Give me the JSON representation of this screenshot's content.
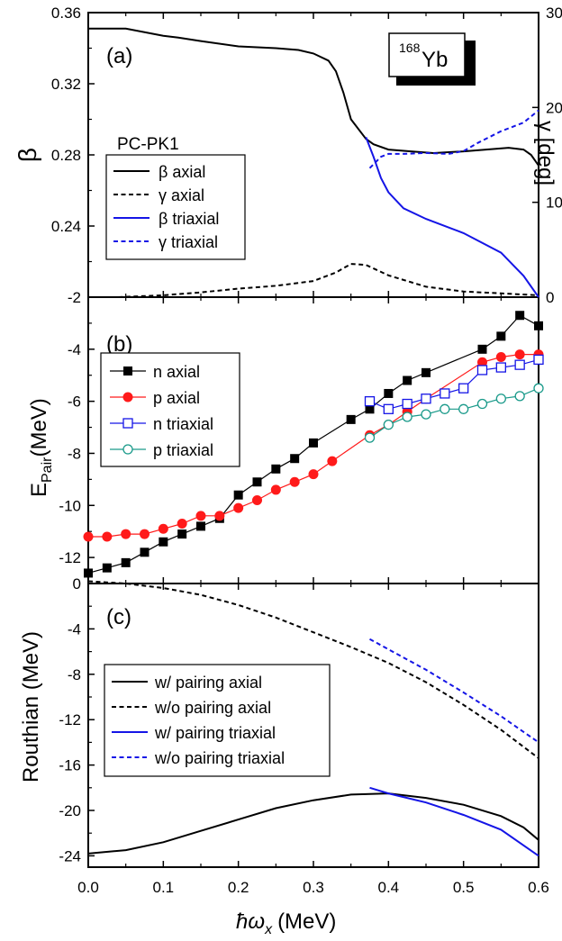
{
  "colors": {
    "axial": "#000000",
    "triaxial": "#1515e6",
    "p_axial": "#ff1a1a",
    "p_triaxial": "#1a9a8a"
  },
  "shared_x": {
    "label_main": "ω",
    "label_sub": "x",
    "label_unit": "(MeV)",
    "ticks": [
      "0.0",
      "0.1",
      "0.2",
      "0.3",
      "0.4",
      "0.5",
      "0.6"
    ],
    "xlim": [
      0,
      0.6
    ]
  },
  "chart_data": [
    {
      "type": "line",
      "panel_label": "(a)",
      "nucleus": {
        "mass": "168",
        "symbol": "Yb"
      },
      "legend_title": "PC-PK1",
      "legend_placement": "left",
      "ylabel_left": "β",
      "ylabel_right": "γ [deg]",
      "ylim_left": [
        0.2,
        0.36
      ],
      "ylim_right": [
        0,
        30
      ],
      "left_ticks": [
        "0.36",
        "0.32",
        "0.28",
        "0.24"
      ],
      "right_ticks": [
        "30",
        "20",
        "10",
        "0"
      ],
      "series": [
        {
          "name": "β axial",
          "axis": "left",
          "color": "#000000",
          "dash": "solid",
          "x": [
            0,
            0.05,
            0.1,
            0.12,
            0.15,
            0.2,
            0.25,
            0.28,
            0.3,
            0.32,
            0.33,
            0.34,
            0.35,
            0.37,
            0.38,
            0.4,
            0.43,
            0.46,
            0.5,
            0.53,
            0.56,
            0.58,
            0.59,
            0.6
          ],
          "y": [
            0.351,
            0.351,
            0.347,
            0.346,
            0.344,
            0.341,
            0.34,
            0.339,
            0.337,
            0.333,
            0.327,
            0.315,
            0.3,
            0.289,
            0.286,
            0.283,
            0.282,
            0.281,
            0.282,
            0.283,
            0.284,
            0.283,
            0.28,
            0.274
          ]
        },
        {
          "name": "γ axial",
          "axis": "right",
          "color": "#000000",
          "dash": "dashed",
          "x": [
            0.04,
            0.1,
            0.15,
            0.2,
            0.25,
            0.3,
            0.33,
            0.35,
            0.37,
            0.4,
            0.45,
            0.5,
            0.55,
            0.6
          ],
          "y": [
            0,
            0.2,
            0.5,
            0.9,
            1.2,
            1.7,
            2.6,
            3.5,
            3.4,
            2.3,
            1.1,
            0.6,
            0.4,
            0.2
          ]
        },
        {
          "name": "β triaxial",
          "axis": "left",
          "color": "#1515e6",
          "dash": "solid",
          "x": [
            0.37,
            0.38,
            0.39,
            0.4,
            0.42,
            0.45,
            0.5,
            0.55,
            0.58,
            0.6
          ],
          "y": [
            0.29,
            0.279,
            0.267,
            0.259,
            0.25,
            0.244,
            0.236,
            0.225,
            0.212,
            0.2
          ]
        },
        {
          "name": "γ triaxial",
          "axis": "right",
          "color": "#1515e6",
          "dash": "dashed",
          "x": [
            0.375,
            0.39,
            0.4,
            0.42,
            0.45,
            0.48,
            0.5,
            0.52,
            0.55,
            0.58,
            0.6
          ],
          "y": [
            13.6,
            14.8,
            15.1,
            15.1,
            15.2,
            15.1,
            15.4,
            16.3,
            17.5,
            18.4,
            19.7
          ]
        }
      ]
    },
    {
      "type": "line",
      "panel_label": "(b)",
      "ylabel": "E",
      "ylabel_sub": "Pair",
      "ylabel_unit": "(MeV)",
      "ylim": [
        -13,
        -2
      ],
      "left_ticks": [
        "-2",
        "-4",
        "-6",
        "-8",
        "-10",
        "-12"
      ],
      "legend_placement": "left",
      "series": [
        {
          "name": "n axial",
          "color": "#000000",
          "marker": "filled-square",
          "x": [
            0,
            0.025,
            0.05,
            0.075,
            0.1,
            0.125,
            0.15,
            0.175,
            0.2,
            0.225,
            0.25,
            0.275,
            0.3,
            0.35,
            0.375,
            0.4,
            0.425,
            0.45,
            0.525,
            0.55,
            0.575,
            0.6
          ],
          "y": [
            -12.6,
            -12.4,
            -12.2,
            -11.8,
            -11.4,
            -11.1,
            -10.8,
            -10.5,
            -9.6,
            -9.1,
            -8.6,
            -8.2,
            -7.6,
            -6.7,
            -6.3,
            -5.7,
            -5.2,
            -4.9,
            -4.0,
            -3.5,
            -2.7,
            -3.1
          ]
        },
        {
          "name": "p axial",
          "color": "#ff1a1a",
          "marker": "filled-circle",
          "x": [
            0,
            0.025,
            0.05,
            0.075,
            0.1,
            0.125,
            0.15,
            0.175,
            0.2,
            0.225,
            0.25,
            0.275,
            0.3,
            0.325,
            0.375,
            0.4,
            0.425,
            0.45,
            0.525,
            0.55,
            0.575,
            0.6
          ],
          "y": [
            -11.2,
            -11.2,
            -11.1,
            -11.1,
            -10.9,
            -10.7,
            -10.4,
            -10.4,
            -10.1,
            -9.8,
            -9.4,
            -9.1,
            -8.8,
            -8.3,
            -7.3,
            -6.9,
            -6.4,
            -5.9,
            -4.5,
            -4.3,
            -4.2,
            -4.2
          ]
        },
        {
          "name": "n triaxial",
          "color": "#1515e6",
          "marker": "open-square",
          "x": [
            0.375,
            0.4,
            0.425,
            0.45,
            0.475,
            0.5,
            0.525,
            0.55,
            0.575,
            0.6
          ],
          "y": [
            -6.0,
            -6.3,
            -6.1,
            -5.9,
            -5.7,
            -5.5,
            -4.8,
            -4.7,
            -4.6,
            -4.4
          ]
        },
        {
          "name": "p triaxial",
          "color": "#1a9a8a",
          "marker": "open-circle",
          "x": [
            0.375,
            0.4,
            0.425,
            0.45,
            0.475,
            0.5,
            0.525,
            0.55,
            0.575,
            0.6
          ],
          "y": [
            -7.4,
            -6.9,
            -6.6,
            -6.5,
            -6.3,
            -6.3,
            -6.1,
            -5.9,
            -5.8,
            -5.5
          ]
        }
      ]
    },
    {
      "type": "line",
      "panel_label": "(c)",
      "ylabel": "Routhian (MeV)",
      "ylim": [
        -25,
        0
      ],
      "left_ticks": [
        "0",
        "-4",
        "-8",
        "-12",
        "-16",
        "-20",
        "-24"
      ],
      "legend_placement": "left",
      "series": [
        {
          "name": "w/   pairing axial",
          "color": "#000000",
          "dash": "solid",
          "x": [
            0,
            0.05,
            0.1,
            0.15,
            0.2,
            0.25,
            0.3,
            0.35,
            0.4,
            0.45,
            0.5,
            0.55,
            0.58,
            0.6
          ],
          "y": [
            -23.8,
            -23.5,
            -22.8,
            -21.8,
            -20.8,
            -19.8,
            -19.1,
            -18.6,
            -18.5,
            -18.9,
            -19.5,
            -20.5,
            -21.5,
            -22.6
          ]
        },
        {
          "name": "w/o pairing axial",
          "color": "#000000",
          "dash": "dashed",
          "x": [
            0,
            0.05,
            0.1,
            0.15,
            0.2,
            0.25,
            0.3,
            0.35,
            0.4,
            0.45,
            0.5,
            0.55,
            0.6
          ],
          "y": [
            0.2,
            0,
            -0.4,
            -1.0,
            -1.9,
            -3.0,
            -4.3,
            -5.6,
            -7.0,
            -8.7,
            -10.7,
            -12.9,
            -15.4
          ]
        },
        {
          "name": "w/   pairing triaxial",
          "color": "#1515e6",
          "dash": "solid",
          "x": [
            0.375,
            0.4,
            0.45,
            0.5,
            0.55,
            0.6
          ],
          "y": [
            -18.0,
            -18.5,
            -19.3,
            -20.4,
            -21.7,
            -24.0
          ]
        },
        {
          "name": "w/o pairing triaxial",
          "color": "#1515e6",
          "dash": "dashed",
          "x": [
            0.375,
            0.4,
            0.45,
            0.5,
            0.55,
            0.6
          ],
          "y": [
            -4.9,
            -5.8,
            -7.6,
            -9.6,
            -11.7,
            -14.0
          ]
        }
      ]
    }
  ]
}
